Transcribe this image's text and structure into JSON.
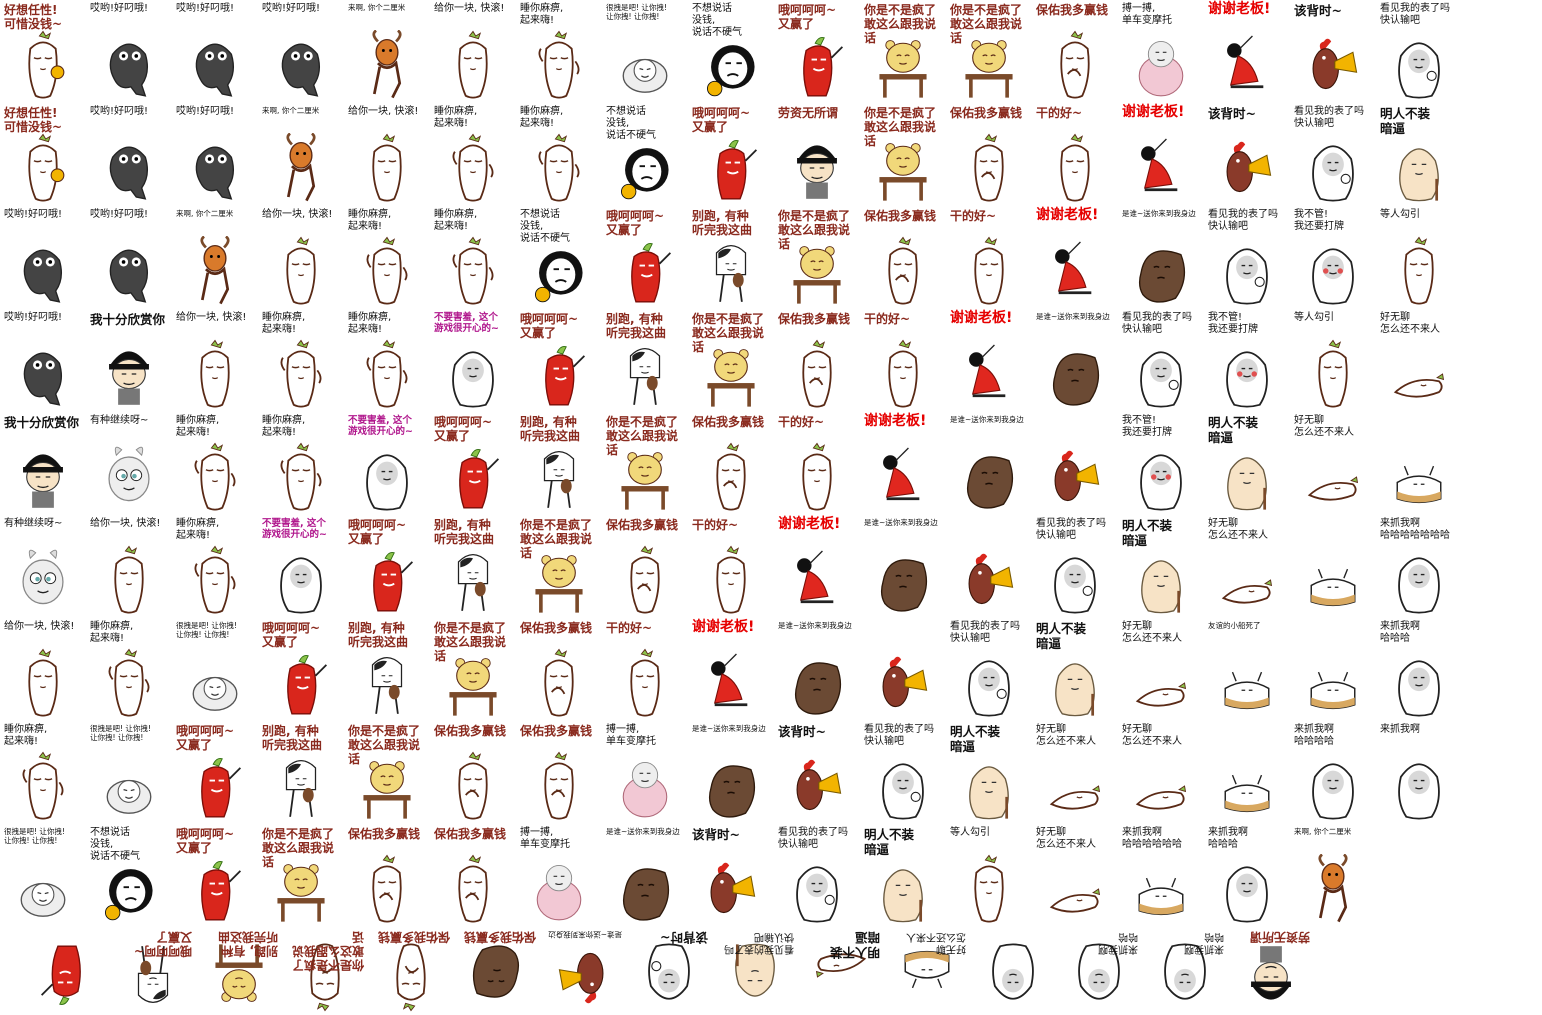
{
  "rows": [
    [
      {
        "caption": "好想任性!\n可惜没钱~",
        "style": "hand",
        "figure": "radish-coin"
      },
      {
        "caption": "哎哟!好叼哦!",
        "style": "",
        "figure": "dark-blob"
      },
      {
        "caption": "哎哟!好叼哦!",
        "style": "",
        "figure": "dark-blob"
      },
      {
        "caption": "哎哟!好叼哦!",
        "style": "",
        "figure": "dark-blob"
      },
      {
        "caption": "来啊, 你个二厘米",
        "style": "tiny",
        "figure": "horse-dance"
      },
      {
        "caption": "给你一块, 快滚!",
        "style": "",
        "figure": "radish-throw"
      },
      {
        "caption": "睡你麻痹,\n起来嗨!",
        "style": "",
        "figure": "radish-dance"
      },
      {
        "caption": "很拽是吧! 让你拽!\n让你拽! 让你拽!",
        "style": "tiny",
        "figure": "pillow-face"
      },
      {
        "caption": "不想说话\n没钱,\n说话不硬气",
        "style": "",
        "figure": "helmet-face"
      },
      {
        "caption": "哦呵呵呵~\n又赢了",
        "style": "hand",
        "figure": "chili"
      },
      {
        "caption": "你是不是疯了\n敢这么跟我说话",
        "style": "hand",
        "figure": "bear-desk"
      },
      {
        "caption": "你是不是疯了\n敢这么跟我说话",
        "style": "hand",
        "figure": "bear-desk"
      },
      {
        "caption": "保佑我多赢钱",
        "style": "hand",
        "figure": "radish-pray"
      },
      {
        "caption": "搏一搏,\n单车变摩托",
        "style": "",
        "figure": "pink-blob"
      },
      {
        "caption": "谢谢老板!",
        "style": "red",
        "figure": "kneel-red"
      },
      {
        "caption": "该背时~",
        "style": "big",
        "figure": "hen-horn"
      },
      {
        "caption": "看见我的表了吗\n快认输吧",
        "style": "",
        "figure": "watch-face"
      }
    ],
    [
      {
        "caption": "好想任性!\n可惜没钱~",
        "style": "hand",
        "figure": "radish-coin"
      },
      {
        "caption": "哎哟!好叼哦!",
        "style": "",
        "figure": "dark-blob"
      },
      {
        "caption": "哎哟!好叼哦!",
        "style": "",
        "figure": "dark-blob"
      },
      {
        "caption": "来啊, 你个二厘米",
        "style": "tiny",
        "figure": "horse-dance"
      },
      {
        "caption": "给你一块, 快滚!",
        "style": "",
        "figure": "radish-throw"
      },
      {
        "caption": "睡你麻痹,\n起来嗨!",
        "style": "",
        "figure": "radish-dance"
      },
      {
        "caption": "睡你麻痹,\n起来嗨!",
        "style": "",
        "figure": "radish-dance"
      },
      {
        "caption": "不想说话\n没钱,\n说话不硬气",
        "style": "",
        "figure": "helmet-face"
      },
      {
        "caption": "哦呵呵呵~\n又赢了",
        "style": "hand",
        "figure": "chili"
      },
      {
        "caption": "劳资无所谓",
        "style": "hand",
        "figure": "bowl-cut"
      },
      {
        "caption": "你是不是疯了\n敢这么跟我说话",
        "style": "hand",
        "figure": "bear-desk"
      },
      {
        "caption": "保佑我多赢钱",
        "style": "hand",
        "figure": "radish-pray"
      },
      {
        "caption": "干的好~",
        "style": "hand",
        "figure": "radish-smug"
      },
      {
        "caption": "谢谢老板!",
        "style": "red",
        "figure": "kneel-red"
      },
      {
        "caption": "该背时~",
        "style": "big",
        "figure": "hen-horn"
      },
      {
        "caption": "看见我的表了吗\n快认输吧",
        "style": "",
        "figure": "watch-face"
      },
      {
        "caption": "明人不装\n暗逼",
        "style": "big",
        "figure": "potato"
      }
    ],
    [
      {
        "caption": "哎哟!好叼哦!",
        "style": "",
        "figure": "dark-blob"
      },
      {
        "caption": "哎哟!好叼哦!",
        "style": "",
        "figure": "dark-blob"
      },
      {
        "caption": "来啊, 你个二厘米",
        "style": "tiny",
        "figure": "horse-dance"
      },
      {
        "caption": "给你一块, 快滚!",
        "style": "",
        "figure": "radish-throw"
      },
      {
        "caption": "睡你麻痹,\n起来嗨!",
        "style": "",
        "figure": "radish-dance"
      },
      {
        "caption": "睡你麻痹,\n起来嗨!",
        "style": "",
        "figure": "radish-dance"
      },
      {
        "caption": "不想说话\n没钱,\n说话不硬气",
        "style": "",
        "figure": "helmet-face"
      },
      {
        "caption": "哦呵呵呵~\n又赢了",
        "style": "hand",
        "figure": "chili"
      },
      {
        "caption": "别跑, 有种\n听完我这曲",
        "style": "hand",
        "figure": "violin"
      },
      {
        "caption": "你是不是疯了\n敢这么跟我说话",
        "style": "hand",
        "figure": "bear-desk"
      },
      {
        "caption": "保佑我多赢钱",
        "style": "hand",
        "figure": "radish-pray"
      },
      {
        "caption": "干的好~",
        "style": "hand",
        "figure": "radish-smug"
      },
      {
        "caption": "谢谢老板!",
        "style": "red",
        "figure": "kneel-red"
      },
      {
        "caption": "是谁~送你来到我身边",
        "style": "tiny",
        "figure": "brown-blob"
      },
      {
        "caption": "看见我的表了吗\n快认输吧",
        "style": "",
        "figure": "watch-face"
      },
      {
        "caption": "我不管!\n我还要打牌",
        "style": "",
        "figure": "cry-face"
      },
      {
        "caption": "等人勾引",
        "style": "",
        "figure": "radish-sit"
      }
    ],
    [
      {
        "caption": "哎哟!好叼哦!",
        "style": "",
        "figure": "dark-blob"
      },
      {
        "caption": "我十分欣赏你",
        "style": "big",
        "figure": "bowl-cut"
      },
      {
        "caption": "给你一块, 快滚!",
        "style": "",
        "figure": "radish-throw"
      },
      {
        "caption": "睡你麻痹,\n起来嗨!",
        "style": "",
        "figure": "radish-dance"
      },
      {
        "caption": "睡你麻痹,\n起来嗨!",
        "style": "",
        "figure": "radish-dance"
      },
      {
        "caption": "不要害羞, 这个\n游戏很开心的~",
        "style": "pink",
        "figure": "round-face"
      },
      {
        "caption": "哦呵呵呵~\n又赢了",
        "style": "hand",
        "figure": "chili"
      },
      {
        "caption": "别跑, 有种\n听完我这曲",
        "style": "hand",
        "figure": "violin"
      },
      {
        "caption": "你是不是疯了\n敢这么跟我说话",
        "style": "hand",
        "figure": "bear-desk"
      },
      {
        "caption": "保佑我多赢钱",
        "style": "hand",
        "figure": "radish-pray"
      },
      {
        "caption": "干的好~",
        "style": "hand",
        "figure": "radish-smug"
      },
      {
        "caption": "谢谢老板!",
        "style": "red",
        "figure": "kneel-red"
      },
      {
        "caption": "是谁~送你来到我身边",
        "style": "tiny",
        "figure": "brown-blob"
      },
      {
        "caption": "看见我的表了吗\n快认输吧",
        "style": "",
        "figure": "watch-face"
      },
      {
        "caption": "我不管!\n我还要打牌",
        "style": "",
        "figure": "cry-face"
      },
      {
        "caption": "等人勾引",
        "style": "",
        "figure": "radish-sit"
      },
      {
        "caption": "好无聊\n怎么还不来人",
        "style": "",
        "figure": "radish-lie"
      }
    ],
    [
      {
        "caption": "我十分欣赏你",
        "style": "big",
        "figure": "bowl-cut"
      },
      {
        "caption": "有种继续呀~",
        "style": "",
        "figure": "bunny"
      },
      {
        "caption": "睡你麻痹,\n起来嗨!",
        "style": "",
        "figure": "radish-dance"
      },
      {
        "caption": "睡你麻痹,\n起来嗨!",
        "style": "",
        "figure": "radish-dance"
      },
      {
        "caption": "不要害羞, 这个\n游戏很开心的~",
        "style": "pink",
        "figure": "round-face"
      },
      {
        "caption": "哦呵呵呵~\n又赢了",
        "style": "hand",
        "figure": "chili"
      },
      {
        "caption": "别跑, 有种\n听完我这曲",
        "style": "hand",
        "figure": "violin"
      },
      {
        "caption": "你是不是疯了\n敢这么跟我说话",
        "style": "hand",
        "figure": "bear-desk"
      },
      {
        "caption": "保佑我多赢钱",
        "style": "hand",
        "figure": "radish-pray"
      },
      {
        "caption": "干的好~",
        "style": "hand",
        "figure": "radish-smug"
      },
      {
        "caption": "谢谢老板!",
        "style": "red",
        "figure": "kneel-red"
      },
      {
        "caption": "是谁~送你来到我身边",
        "style": "tiny",
        "figure": "brown-blob"
      },
      {
        "caption": "",
        "style": "",
        "figure": "hen-horn"
      },
      {
        "caption": "我不管!\n我还要打牌",
        "style": "",
        "figure": "cry-face"
      },
      {
        "caption": "明人不装\n暗逼",
        "style": "big",
        "figure": "potato"
      },
      {
        "caption": "好无聊\n怎么还不来人",
        "style": "",
        "figure": "radish-lie"
      },
      {
        "caption": "",
        "style": "",
        "figure": "dog-box"
      }
    ],
    [
      {
        "caption": "有种继续呀~",
        "style": "",
        "figure": "bunny"
      },
      {
        "caption": "给你一块, 快滚!",
        "style": "",
        "figure": "radish-throw"
      },
      {
        "caption": "睡你麻痹,\n起来嗨!",
        "style": "",
        "figure": "radish-dance"
      },
      {
        "caption": "不要害羞, 这个\n游戏很开心的~",
        "style": "pink",
        "figure": "round-face"
      },
      {
        "caption": "哦呵呵呵~\n又赢了",
        "style": "hand",
        "figure": "chili"
      },
      {
        "caption": "别跑, 有种\n听完我这曲",
        "style": "hand",
        "figure": "violin"
      },
      {
        "caption": "你是不是疯了\n敢这么跟我说话",
        "style": "hand",
        "figure": "bear-desk"
      },
      {
        "caption": "保佑我多赢钱",
        "style": "hand",
        "figure": "radish-pray"
      },
      {
        "caption": "干的好~",
        "style": "hand",
        "figure": "radish-smug"
      },
      {
        "caption": "谢谢老板!",
        "style": "red",
        "figure": "kneel-red"
      },
      {
        "caption": "是谁~送你来到我身边",
        "style": "tiny",
        "figure": "brown-blob"
      },
      {
        "caption": "",
        "style": "",
        "figure": "hen-horn"
      },
      {
        "caption": "看见我的表了吗\n快认输吧",
        "style": "",
        "figure": "watch-face"
      },
      {
        "caption": "明人不装\n暗逼",
        "style": "big",
        "figure": "potato"
      },
      {
        "caption": "好无聊\n怎么还不来人",
        "style": "",
        "figure": "radish-lie"
      },
      {
        "caption": "",
        "style": "",
        "figure": "dog-box"
      },
      {
        "caption": "来抓我啊\n哈哈哈哈哈哈哈",
        "style": "",
        "figure": "ghost-face"
      }
    ],
    [
      {
        "caption": "给你一块, 快滚!",
        "style": "",
        "figure": "radish-throw"
      },
      {
        "caption": "睡你麻痹,\n起来嗨!",
        "style": "",
        "figure": "radish-dance"
      },
      {
        "caption": "很拽是吧! 让你拽!\n让你拽! 让你拽!",
        "style": "tiny",
        "figure": "pillow-face"
      },
      {
        "caption": "哦呵呵呵~\n又赢了",
        "style": "hand",
        "figure": "chili"
      },
      {
        "caption": "别跑, 有种\n听完我这曲",
        "style": "hand",
        "figure": "violin"
      },
      {
        "caption": "你是不是疯了\n敢这么跟我说话",
        "style": "hand",
        "figure": "bear-desk"
      },
      {
        "caption": "保佑我多赢钱",
        "style": "hand",
        "figure": "radish-pray"
      },
      {
        "caption": "干的好~",
        "style": "hand",
        "figure": "radish-smug"
      },
      {
        "caption": "谢谢老板!",
        "style": "red",
        "figure": "kneel-red"
      },
      {
        "caption": "是谁~送你来到我身边",
        "style": "tiny",
        "figure": "brown-blob"
      },
      {
        "caption": "",
        "style": "",
        "figure": "hen-horn"
      },
      {
        "caption": "看见我的表了吗\n快认输吧",
        "style": "",
        "figure": "watch-face"
      },
      {
        "caption": "明人不装\n暗逼",
        "style": "big",
        "figure": "potato"
      },
      {
        "caption": "好无聊\n怎么还不来人",
        "style": "",
        "figure": "radish-lie"
      },
      {
        "caption": "友谊的小船死了",
        "style": "tiny",
        "figure": "dog-box"
      },
      {
        "caption": "",
        "style": "",
        "figure": "dog-box"
      },
      {
        "caption": "来抓我啊\n哈哈哈",
        "style": "",
        "figure": "ghost-face"
      }
    ],
    [
      {
        "caption": "睡你麻痹,\n起来嗨!",
        "style": "",
        "figure": "radish-dance"
      },
      {
        "caption": "很拽是吧! 让你拽!\n让你拽! 让你拽!",
        "style": "tiny",
        "figure": "pillow-face"
      },
      {
        "caption": "哦呵呵呵~\n又赢了",
        "style": "hand",
        "figure": "chili"
      },
      {
        "caption": "别跑, 有种\n听完我这曲",
        "style": "hand",
        "figure": "violin"
      },
      {
        "caption": "你是不是疯了\n敢这么跟我说话",
        "style": "hand",
        "figure": "bear-desk"
      },
      {
        "caption": "保佑我多赢钱",
        "style": "hand",
        "figure": "radish-pray"
      },
      {
        "caption": "保佑我多赢钱",
        "style": "hand",
        "figure": "radish-pray"
      },
      {
        "caption": "搏一搏,\n单车变摩托",
        "style": "",
        "figure": "pink-blob"
      },
      {
        "caption": "是谁~送你来到我身边",
        "style": "tiny",
        "figure": "brown-blob"
      },
      {
        "caption": "该背时~",
        "style": "big",
        "figure": "hen-horn"
      },
      {
        "caption": "看见我的表了吗\n快认输吧",
        "style": "",
        "figure": "watch-face"
      },
      {
        "caption": "明人不装\n暗逼",
        "style": "big",
        "figure": "potato"
      },
      {
        "caption": "好无聊\n怎么还不来人",
        "style": "",
        "figure": "radish-lie"
      },
      {
        "caption": "好无聊\n怎么还不来人",
        "style": "",
        "figure": "radish-lie"
      },
      {
        "caption": "",
        "style": "",
        "figure": "dog-box"
      },
      {
        "caption": "来抓我啊\n哈哈哈哈",
        "style": "",
        "figure": "ghost-face"
      },
      {
        "caption": "来抓我啊",
        "style": "",
        "figure": "ghost-face"
      }
    ],
    [
      {
        "caption": "很拽是吧! 让你拽!\n让你拽! 让你拽!",
        "style": "tiny",
        "figure": "pillow-face"
      },
      {
        "caption": "不想说话\n没钱,\n说话不硬气",
        "style": "",
        "figure": "helmet-face"
      },
      {
        "caption": "哦呵呵呵~\n又赢了",
        "style": "hand",
        "figure": "chili"
      },
      {
        "caption": "你是不是疯了\n敢这么跟我说话",
        "style": "hand",
        "figure": "bear-desk"
      },
      {
        "caption": "保佑我多赢钱",
        "style": "hand",
        "figure": "radish-pray"
      },
      {
        "caption": "保佑我多赢钱",
        "style": "hand",
        "figure": "radish-pray"
      },
      {
        "caption": "搏一搏,\n单车变摩托",
        "style": "",
        "figure": "pink-blob"
      },
      {
        "caption": "是谁~送你来到我身边",
        "style": "tiny",
        "figure": "brown-blob"
      },
      {
        "caption": "该背时~",
        "style": "big",
        "figure": "hen-horn"
      },
      {
        "caption": "看见我的表了吗\n快认输吧",
        "style": "",
        "figure": "watch-face"
      },
      {
        "caption": "明人不装\n暗逼",
        "style": "big",
        "figure": "potato"
      },
      {
        "caption": "等人勾引",
        "style": "",
        "figure": "radish-sit"
      },
      {
        "caption": "好无聊\n怎么还不来人",
        "style": "",
        "figure": "radish-lie"
      },
      {
        "caption": "来抓我啊\n哈哈哈哈哈哈",
        "style": "",
        "figure": "dog-box"
      },
      {
        "caption": "来抓我啊\n哈哈哈",
        "style": "",
        "figure": "ghost-face"
      },
      {
        "caption": "来啊, 你个二厘米",
        "style": "tiny",
        "figure": "horse-dance"
      }
    ],
    [
      {
        "caption": "",
        "style": "",
        "figure": "chili"
      },
      {
        "caption": "哦呵呵呵~\n又赢了",
        "style": "hand",
        "figure": "violin"
      },
      {
        "caption": "别跑, 有种\n听完我这曲",
        "style": "hand",
        "figure": "bear-desk"
      },
      {
        "caption": "你是不是疯了\n敢这么跟我说话",
        "style": "hand",
        "figure": "radish-pray"
      },
      {
        "caption": "保佑我多赢钱",
        "style": "hand",
        "figure": "radish-pray"
      },
      {
        "caption": "保佑我多赢钱",
        "style": "hand",
        "figure": "brown-blob"
      },
      {
        "caption": "是谁~送你来到我身边",
        "style": "tiny",
        "figure": "hen-horn"
      },
      {
        "caption": "该背时~",
        "style": "big",
        "figure": "watch-face"
      },
      {
        "caption": "看见我的表了吗\n快认输吧",
        "style": "",
        "figure": "potato"
      },
      {
        "caption": "明人不装\n暗逼",
        "style": "big",
        "figure": "radish-lie"
      },
      {
        "caption": "好无聊\n怎么还不来人",
        "style": "",
        "figure": "dog-box"
      },
      {
        "caption": "",
        "style": "",
        "figure": "ghost-face"
      },
      {
        "caption": "来抓我啊\n哈哈",
        "style": "",
        "figure": "ghost-face"
      },
      {
        "caption": "来抓我啊\n哈哈",
        "style": "",
        "figure": "ghost-face"
      },
      {
        "caption": "劳资无所谓",
        "style": "hand",
        "figure": "bowl-cut"
      }
    ]
  ],
  "colors": {
    "outline": "#5a2a16",
    "radish": "#ffffff",
    "leaf": "#8bc34a",
    "bear": "#f1d87a",
    "desk": "#7a4a2a",
    "chili": "#d9261c",
    "brown": "#6b4a34",
    "hen": "#8a3a2a",
    "horn": "#f2b400",
    "skin": "#f7e3c6",
    "dark": "#444444",
    "pink": "#f2c8d4",
    "redcloth": "#e0271f",
    "orange": "#d97a2b"
  }
}
